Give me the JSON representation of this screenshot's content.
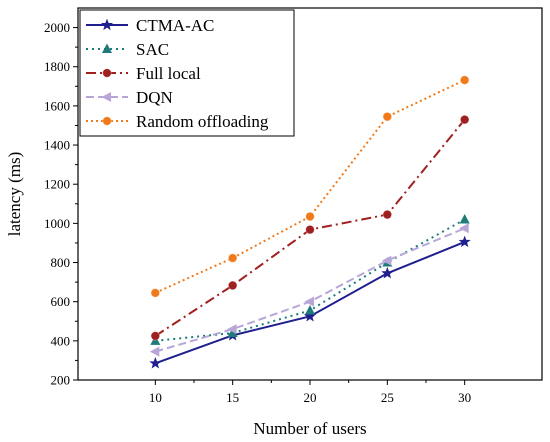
{
  "chart_data": {
    "type": "line",
    "title": "",
    "xlabel": "Number of users",
    "ylabel": "latency (ms)",
    "x": [
      10,
      15,
      20,
      25,
      30
    ],
    "xlim": [
      5,
      35
    ],
    "ylim": [
      200,
      2100
    ],
    "xticks": [
      10,
      15,
      20,
      25,
      30
    ],
    "yticks": [
      200,
      400,
      600,
      800,
      1000,
      1200,
      1400,
      1600,
      1800,
      2000
    ],
    "grid": false,
    "legend_position": "top-left",
    "series": [
      {
        "name": "CTMA-AC",
        "values": [
          285,
          428,
          525,
          745,
          905
        ],
        "color": "#1f1f8f",
        "dash": "",
        "marker": "star"
      },
      {
        "name": "SAC",
        "values": [
          400,
          440,
          555,
          800,
          1020
        ],
        "color": "#1f7a7a",
        "dash": "2,4",
        "marker": "triangle-up"
      },
      {
        "name": "Full local",
        "values": [
          425,
          683,
          968,
          1045,
          1530
        ],
        "color": "#a01f1f",
        "dash": "10,4,2,4",
        "marker": "circle"
      },
      {
        "name": "DQN",
        "values": [
          345,
          460,
          600,
          810,
          975
        ],
        "color": "#b8a6d9",
        "dash": "8,4",
        "marker": "triangle-left"
      },
      {
        "name": "Random offloading",
        "values": [
          645,
          823,
          1035,
          1545,
          1732
        ],
        "color": "#f07a1a",
        "dash": "2,3",
        "marker": "circle"
      }
    ]
  }
}
